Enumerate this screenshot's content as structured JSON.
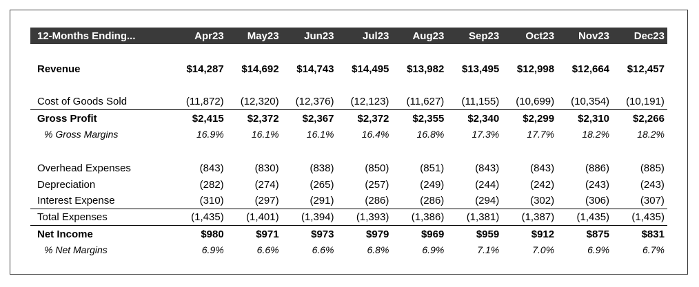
{
  "header": {
    "label": "12-Months Ending...",
    "months": [
      "Apr23",
      "May23",
      "Jun23",
      "Jul23",
      "Aug23",
      "Sep23",
      "Oct23",
      "Nov23",
      "Dec23"
    ]
  },
  "rows": {
    "revenue": {
      "label": "Revenue",
      "values": [
        "$14,287",
        "$14,692",
        "$14,743",
        "$14,495",
        "$13,982",
        "$13,495",
        "$12,998",
        "$12,664",
        "$12,457"
      ]
    },
    "cogs": {
      "label": "Cost of Goods Sold",
      "values": [
        "(11,872)",
        "(12,320)",
        "(12,376)",
        "(12,123)",
        "(11,627)",
        "(11,155)",
        "(10,699)",
        "(10,354)",
        "(10,191)"
      ]
    },
    "gross_profit": {
      "label": "Gross Profit",
      "values": [
        "$2,415",
        "$2,372",
        "$2,367",
        "$2,372",
        "$2,355",
        "$2,340",
        "$2,299",
        "$2,310",
        "$2,266"
      ]
    },
    "gross_margin": {
      "label": "% Gross Margins",
      "values": [
        "16.9%",
        "16.1%",
        "16.1%",
        "16.4%",
        "16.8%",
        "17.3%",
        "17.7%",
        "18.2%",
        "18.2%"
      ]
    },
    "overhead": {
      "label": "Overhead Expenses",
      "values": [
        "(843)",
        "(830)",
        "(838)",
        "(850)",
        "(851)",
        "(843)",
        "(843)",
        "(886)",
        "(885)"
      ]
    },
    "depreciation": {
      "label": "Depreciation",
      "values": [
        "(282)",
        "(274)",
        "(265)",
        "(257)",
        "(249)",
        "(244)",
        "(242)",
        "(243)",
        "(243)"
      ]
    },
    "interest": {
      "label": "Interest Expense",
      "values": [
        "(310)",
        "(297)",
        "(291)",
        "(286)",
        "(286)",
        "(294)",
        "(302)",
        "(306)",
        "(307)"
      ]
    },
    "total_expenses": {
      "label": "Total Expenses",
      "values": [
        "(1,435)",
        "(1,401)",
        "(1,394)",
        "(1,393)",
        "(1,386)",
        "(1,381)",
        "(1,387)",
        "(1,435)",
        "(1,435)"
      ]
    },
    "net_income": {
      "label": "Net Income",
      "values": [
        "$980",
        "$971",
        "$973",
        "$979",
        "$969",
        "$959",
        "$912",
        "$875",
        "$831"
      ]
    },
    "net_margin": {
      "label": "% Net Margins",
      "values": [
        "6.9%",
        "6.6%",
        "6.6%",
        "6.8%",
        "6.9%",
        "7.1%",
        "7.0%",
        "6.9%",
        "6.7%"
      ]
    }
  }
}
